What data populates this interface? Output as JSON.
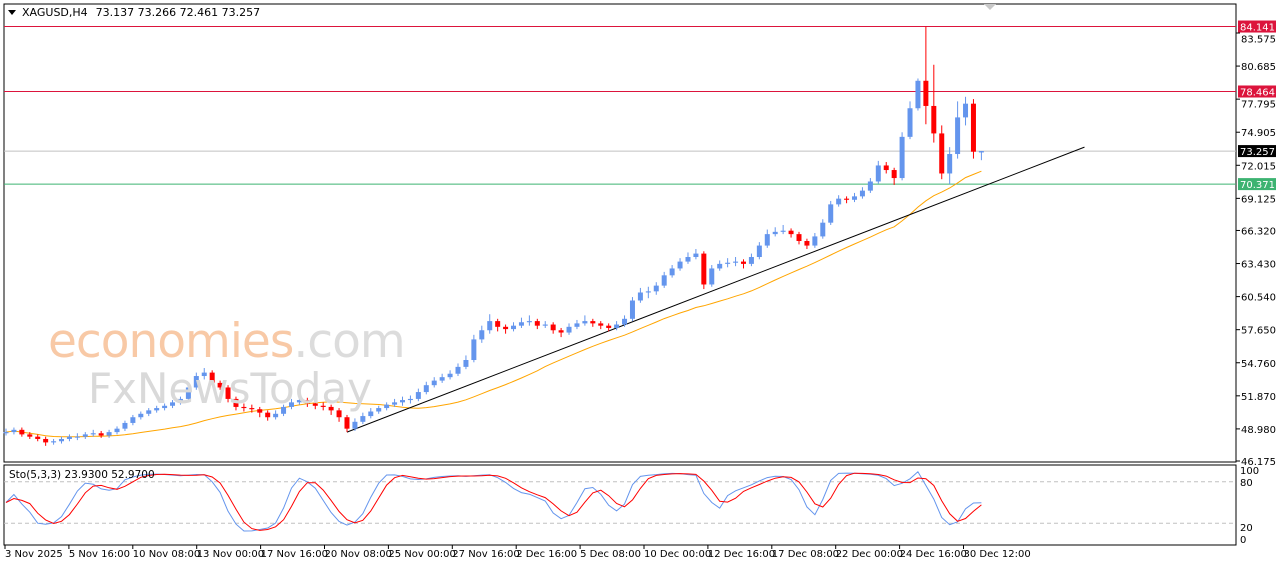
{
  "header": {
    "symbol": "XAGUSD,H4",
    "ohlc": "73.137 73.266 72.461 73.257"
  },
  "watermark": {
    "brand1": "economies",
    "brand1_suffix": ".com",
    "brand2": "FxNewsToday"
  },
  "colors": {
    "bull": "#6495ED",
    "bear": "#FF0000",
    "ma": "#FFA500",
    "trendline": "#000000",
    "level_red": "#DC143C",
    "level_green": "#3CB371",
    "bid": "#C0C0C0",
    "sto_main": "#6495ED",
    "sto_signal": "#FF0000"
  },
  "chart_data": {
    "type": "candlestick",
    "symbol": "XAGUSD",
    "timeframe": "H4",
    "ylim": [
      46.175,
      84.141
    ],
    "price_ticks": [
      "83.575",
      "80.685",
      "77.795",
      "74.905",
      "72.015",
      "69.125",
      "66.320",
      "63.430",
      "60.540",
      "57.650",
      "54.760",
      "51.870",
      "48.980",
      "46.175"
    ],
    "time_ticks": [
      "3 Nov 2025",
      "5 Nov 16:00",
      "10 Nov 08:00",
      "13 Nov 00:00",
      "17 Nov 16:00",
      "20 Nov 08:00",
      "25 Nov 00:00",
      "27 Nov 16:00",
      "2 Dec 16:00",
      "5 Dec 08:00",
      "10 Dec 00:00",
      "12 Dec 16:00",
      "17 Dec 08:00",
      "22 Dec 00:00",
      "24 Dec 16:00",
      "30 Dec 12:00"
    ],
    "levels": [
      {
        "price": "84.141",
        "color": "#DC143C"
      },
      {
        "price": "78.464",
        "color": "#DC143C"
      },
      {
        "price": "73.257",
        "color": "#000000",
        "line": "#C0C0C0"
      },
      {
        "price": "70.371",
        "color": "#3CB371"
      }
    ],
    "trendline": {
      "from": {
        "bar": 43,
        "price": 48.7
      },
      "to": {
        "bar": 136,
        "price": 73.6
      }
    },
    "moving_average_period": 25,
    "candles": [
      [
        48.6,
        49.0,
        48.4,
        48.7
      ],
      [
        48.7,
        49.1,
        48.5,
        48.9
      ],
      [
        48.9,
        49.1,
        48.3,
        48.5
      ],
      [
        48.5,
        48.7,
        48.1,
        48.3
      ],
      [
        48.3,
        48.5,
        47.9,
        48.1
      ],
      [
        48.1,
        48.3,
        47.5,
        47.8
      ],
      [
        47.8,
        48.1,
        47.6,
        47.9
      ],
      [
        47.9,
        48.3,
        47.7,
        48.1
      ],
      [
        48.1,
        48.5,
        47.9,
        48.3
      ],
      [
        48.3,
        48.6,
        48.0,
        48.3
      ],
      [
        48.3,
        48.7,
        48.1,
        48.5
      ],
      [
        48.5,
        48.9,
        48.3,
        48.6
      ],
      [
        48.6,
        48.8,
        48.2,
        48.4
      ],
      [
        48.4,
        48.9,
        48.2,
        48.7
      ],
      [
        48.7,
        49.2,
        48.5,
        49.0
      ],
      [
        49.0,
        49.7,
        48.8,
        49.5
      ],
      [
        49.5,
        50.2,
        49.3,
        50.0
      ],
      [
        50.0,
        50.5,
        49.8,
        50.3
      ],
      [
        50.3,
        50.8,
        50.1,
        50.6
      ],
      [
        50.6,
        51.0,
        50.4,
        50.8
      ],
      [
        50.8,
        51.2,
        50.6,
        51.0
      ],
      [
        51.0,
        51.5,
        50.8,
        51.3
      ],
      [
        51.3,
        51.8,
        51.1,
        51.6
      ],
      [
        51.6,
        52.8,
        51.4,
        52.6
      ],
      [
        52.6,
        53.9,
        52.4,
        53.6
      ],
      [
        53.6,
        54.3,
        53.3,
        53.9
      ],
      [
        53.9,
        54.1,
        52.8,
        53.0
      ],
      [
        53.0,
        53.2,
        52.4,
        52.6
      ],
      [
        52.6,
        52.8,
        51.3,
        51.6
      ],
      [
        51.6,
        51.8,
        50.6,
        50.9
      ],
      [
        50.9,
        51.2,
        50.5,
        50.8
      ],
      [
        50.8,
        51.1,
        50.4,
        50.7
      ],
      [
        50.7,
        50.9,
        50.0,
        50.4
      ],
      [
        50.4,
        50.6,
        49.7,
        50.0
      ],
      [
        50.0,
        50.6,
        49.8,
        50.3
      ],
      [
        50.3,
        51.1,
        50.1,
        50.9
      ],
      [
        50.9,
        51.6,
        50.7,
        51.3
      ],
      [
        51.3,
        51.8,
        51.1,
        51.5
      ],
      [
        51.5,
        51.7,
        50.9,
        51.2
      ],
      [
        51.2,
        51.4,
        50.7,
        51.0
      ],
      [
        51.0,
        51.3,
        50.6,
        50.9
      ],
      [
        50.9,
        51.1,
        50.2,
        50.6
      ],
      [
        50.6,
        50.8,
        49.6,
        50.0
      ],
      [
        50.0,
        50.2,
        48.7,
        49.0
      ],
      [
        49.0,
        49.9,
        48.8,
        49.6
      ],
      [
        49.6,
        50.4,
        49.4,
        50.1
      ],
      [
        50.1,
        50.8,
        49.9,
        50.5
      ],
      [
        50.5,
        51.0,
        50.3,
        50.8
      ],
      [
        50.8,
        51.3,
        50.6,
        51.1
      ],
      [
        51.1,
        51.6,
        50.9,
        51.3
      ],
      [
        51.3,
        51.8,
        51.0,
        51.5
      ],
      [
        51.5,
        51.9,
        51.2,
        51.6
      ],
      [
        51.6,
        52.5,
        51.4,
        52.2
      ],
      [
        52.2,
        53.1,
        52.0,
        52.8
      ],
      [
        52.8,
        53.5,
        52.6,
        53.2
      ],
      [
        53.2,
        53.8,
        53.0,
        53.5
      ],
      [
        53.5,
        54.1,
        53.3,
        53.8
      ],
      [
        53.8,
        54.7,
        53.6,
        54.4
      ],
      [
        54.4,
        55.4,
        54.2,
        55.0
      ],
      [
        55.0,
        57.2,
        54.8,
        56.8
      ],
      [
        56.8,
        58.0,
        56.5,
        57.6
      ],
      [
        57.6,
        59.0,
        57.3,
        58.4
      ],
      [
        58.4,
        58.6,
        57.5,
        57.9
      ],
      [
        57.9,
        58.1,
        57.3,
        57.7
      ],
      [
        57.7,
        58.3,
        57.5,
        58.0
      ],
      [
        58.0,
        58.7,
        57.8,
        58.3
      ],
      [
        58.3,
        58.9,
        58.0,
        58.4
      ],
      [
        58.4,
        58.6,
        57.7,
        58.0
      ],
      [
        58.0,
        58.4,
        57.8,
        58.1
      ],
      [
        58.1,
        58.3,
        57.3,
        57.6
      ],
      [
        57.6,
        57.8,
        57.0,
        57.4
      ],
      [
        57.4,
        58.2,
        57.2,
        57.9
      ],
      [
        57.9,
        58.5,
        57.7,
        58.2
      ],
      [
        58.2,
        58.9,
        58.0,
        58.4
      ],
      [
        58.4,
        58.6,
        57.9,
        58.2
      ],
      [
        58.2,
        58.4,
        57.7,
        58.0
      ],
      [
        58.0,
        58.2,
        57.5,
        57.8
      ],
      [
        57.8,
        58.4,
        57.6,
        58.1
      ],
      [
        58.1,
        58.9,
        57.9,
        58.6
      ],
      [
        58.6,
        60.5,
        58.4,
        60.2
      ],
      [
        60.2,
        61.3,
        60.0,
        60.9
      ],
      [
        60.9,
        61.4,
        60.4,
        61.0
      ],
      [
        61.0,
        61.8,
        60.7,
        61.5
      ],
      [
        61.5,
        62.7,
        61.3,
        62.4
      ],
      [
        62.4,
        63.3,
        62.2,
        63.0
      ],
      [
        63.0,
        63.9,
        62.8,
        63.6
      ],
      [
        63.6,
        64.4,
        63.4,
        64.0
      ],
      [
        64.0,
        64.7,
        63.8,
        64.3
      ],
      [
        64.3,
        64.5,
        61.2,
        61.6
      ],
      [
        61.6,
        63.3,
        61.4,
        63.0
      ],
      [
        63.0,
        63.7,
        62.8,
        63.4
      ],
      [
        63.4,
        63.9,
        63.1,
        63.5
      ],
      [
        63.5,
        64.0,
        63.2,
        63.6
      ],
      [
        63.6,
        63.8,
        63.0,
        63.4
      ],
      [
        63.4,
        64.3,
        63.2,
        64.0
      ],
      [
        64.0,
        65.3,
        63.8,
        65.0
      ],
      [
        65.0,
        66.4,
        64.8,
        66.0
      ],
      [
        66.0,
        66.6,
        65.8,
        66.2
      ],
      [
        66.2,
        66.8,
        66.0,
        66.3
      ],
      [
        66.3,
        66.5,
        65.7,
        66.0
      ],
      [
        66.0,
        66.2,
        65.1,
        65.4
      ],
      [
        65.4,
        65.6,
        64.7,
        65.0
      ],
      [
        65.0,
        66.1,
        64.8,
        65.8
      ],
      [
        65.8,
        67.3,
        65.6,
        67.0
      ],
      [
        67.0,
        68.9,
        66.8,
        68.6
      ],
      [
        68.6,
        69.4,
        68.4,
        69.1
      ],
      [
        69.1,
        69.3,
        68.7,
        69.0
      ],
      [
        69.0,
        69.6,
        68.8,
        69.3
      ],
      [
        69.3,
        70.1,
        69.1,
        69.8
      ],
      [
        69.8,
        70.9,
        69.6,
        70.6
      ],
      [
        70.6,
        72.4,
        70.4,
        72.0
      ],
      [
        72.0,
        72.3,
        71.3,
        71.6
      ],
      [
        71.6,
        71.8,
        70.3,
        70.9
      ],
      [
        70.9,
        74.9,
        70.7,
        74.5
      ],
      [
        74.5,
        77.6,
        74.3,
        77.0
      ],
      [
        77.0,
        79.6,
        76.8,
        79.4
      ],
      [
        79.4,
        84.141,
        75.6,
        77.2
      ],
      [
        77.2,
        80.8,
        74.0,
        74.8
      ],
      [
        74.8,
        75.5,
        70.8,
        71.3
      ],
      [
        71.3,
        73.6,
        70.371,
        73.0
      ],
      [
        73.0,
        77.6,
        72.6,
        76.2
      ],
      [
        76.2,
        78.0,
        75.5,
        77.4
      ],
      [
        77.4,
        77.8,
        72.6,
        73.2
      ],
      [
        73.137,
        73.266,
        72.461,
        73.257
      ]
    ],
    "stochastic": {
      "label": "Sto(5,3,3) 23.9300 52.9700",
      "params": [
        5,
        3,
        3
      ],
      "main_last": 23.93,
      "signal_last": 52.97,
      "ylim": [
        0,
        100
      ],
      "levels": [
        20,
        80
      ],
      "ticks": [
        "100",
        "80",
        "20",
        "0"
      ]
    }
  }
}
